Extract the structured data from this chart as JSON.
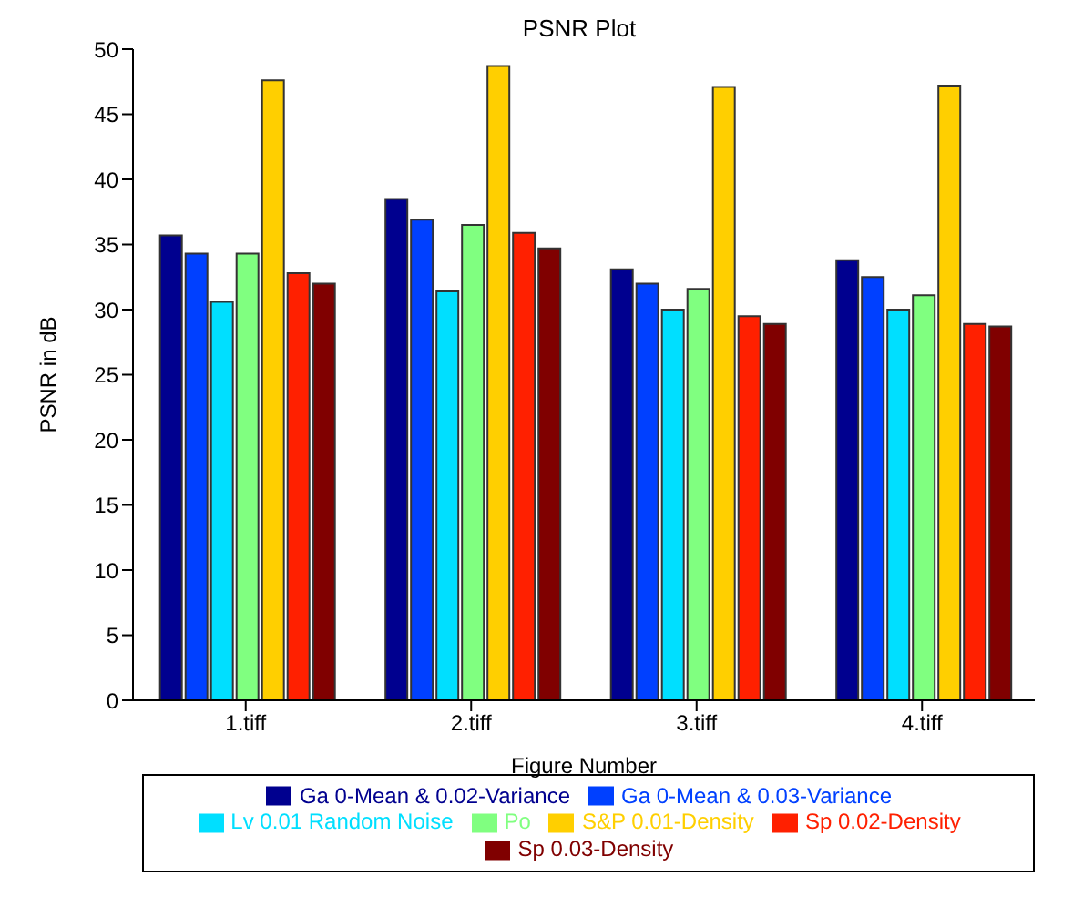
{
  "chart_data": {
    "type": "bar",
    "title": "PSNR Plot",
    "xlabel": "Figure Number",
    "ylabel": "PSNR in dB",
    "categories": [
      "1.tiff",
      "2.tiff",
      "3.tiff",
      "4.tiff"
    ],
    "series": [
      {
        "name": "Ga 0-Mean & 0.02-Variance",
        "color": "#00008f",
        "values": [
          35.7,
          38.5,
          33.1,
          33.8
        ]
      },
      {
        "name": "Ga 0-Mean & 0.03-Variance",
        "color": "#0040ff",
        "values": [
          34.3,
          36.9,
          32.0,
          32.5
        ]
      },
      {
        "name": "Lv 0.01 Random Noise",
        "color": "#00dfff",
        "values": [
          30.6,
          31.4,
          30.0,
          30.0
        ]
      },
      {
        "name": "Po",
        "color": "#80ff80",
        "values": [
          34.3,
          36.5,
          31.6,
          31.1
        ]
      },
      {
        "name": "S&P 0.01-Density",
        "color": "#ffcf00",
        "values": [
          47.6,
          48.7,
          47.1,
          47.2
        ]
      },
      {
        "name": "Sp 0.02-Density",
        "color": "#ff2000",
        "values": [
          32.8,
          35.9,
          29.5,
          28.9
        ]
      },
      {
        "name": "Sp 0.03-Density",
        "color": "#800000",
        "values": [
          32.0,
          34.7,
          28.9,
          28.7
        ]
      }
    ],
    "ylim": [
      0,
      50
    ],
    "yticks": [
      0,
      5,
      10,
      15,
      20,
      25,
      30,
      35,
      40,
      45,
      50
    ],
    "grid": false,
    "legend": "bottom"
  }
}
